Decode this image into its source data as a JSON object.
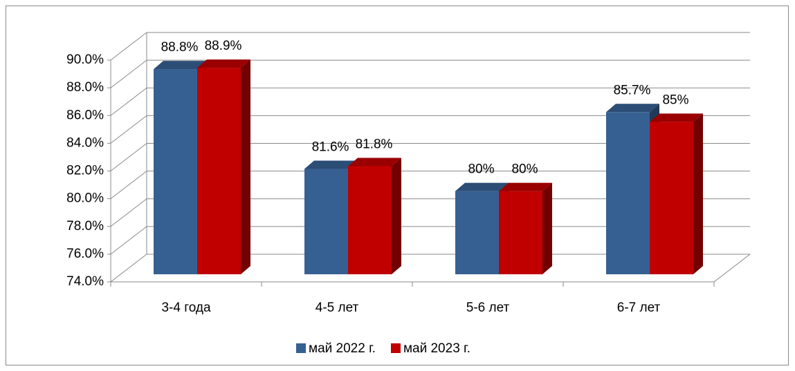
{
  "chart_data": {
    "type": "bar3d",
    "categories": [
      "3-4 года",
      "4-5 лет",
      "5-6 лет",
      "6-7 лет"
    ],
    "series": [
      {
        "name": "май 2022 г.",
        "color": "#376092",
        "values": [
          88.8,
          81.6,
          80,
          85.7
        ],
        "value_labels": [
          "88.8%",
          "81.6%",
          "80%",
          "85.7%"
        ]
      },
      {
        "name": "май 2023 г.",
        "color": "#c00000",
        "values": [
          88.9,
          81.8,
          80,
          85
        ],
        "value_labels": [
          "88.9%",
          "81.8%",
          "80%",
          "85%"
        ]
      }
    ],
    "ylim": [
      74,
      90
    ],
    "yticks": [
      {
        "value": 74,
        "label": "74.0%"
      },
      {
        "value": 76,
        "label": "76.0%"
      },
      {
        "value": 78,
        "label": "78.0%"
      },
      {
        "value": 80,
        "label": "80.0%"
      },
      {
        "value": 82,
        "label": "82.0%"
      },
      {
        "value": 84,
        "label": "84.0%"
      },
      {
        "value": 86,
        "label": "86.0%"
      },
      {
        "value": 88,
        "label": "88.0%"
      },
      {
        "value": 90,
        "label": "90.0%"
      }
    ],
    "grid": true,
    "legend": "bottom"
  }
}
